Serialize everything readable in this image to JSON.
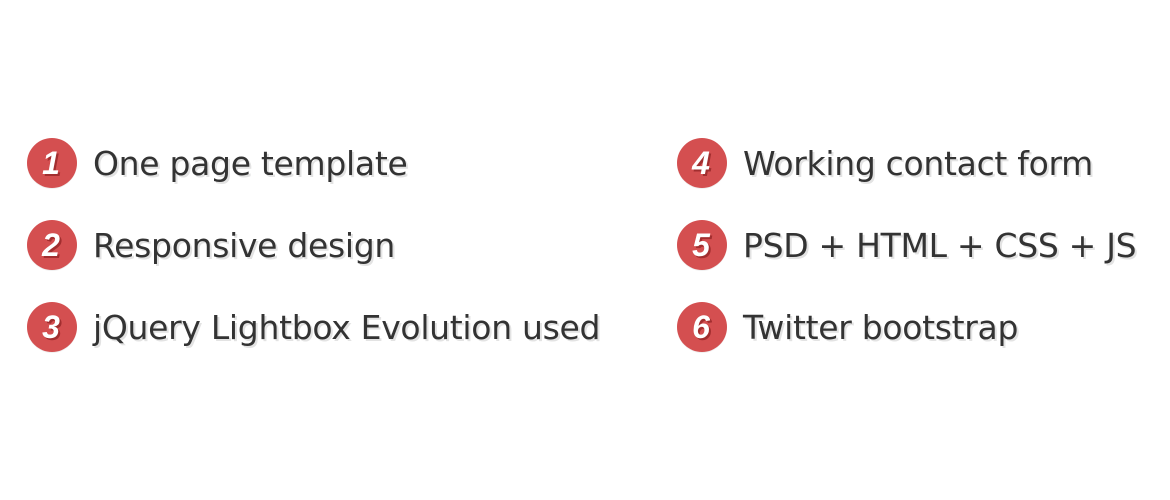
{
  "features": {
    "left": [
      {
        "number": "1",
        "label": "One page template"
      },
      {
        "number": "2",
        "label": "Responsive design"
      },
      {
        "number": "3",
        "label": "jQuery Lightbox Evolution used"
      }
    ],
    "right": [
      {
        "number": "4",
        "label": "Working contact form"
      },
      {
        "number": "5",
        "label": "PSD + HTML + CSS + JS"
      },
      {
        "number": "6",
        "label": "Twitter bootstrap"
      }
    ]
  },
  "colors": {
    "badge": "#d44f50",
    "text": "#333333",
    "background": "#ffffff"
  }
}
